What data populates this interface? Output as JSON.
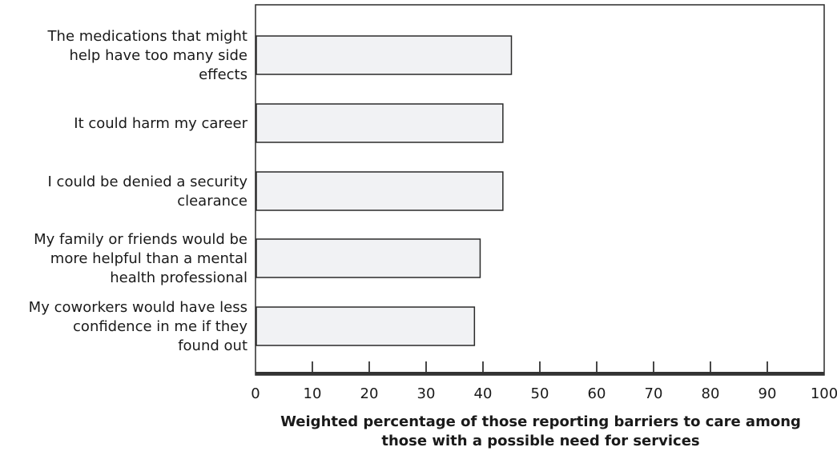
{
  "chart_data": {
    "type": "bar",
    "orientation": "horizontal",
    "categories": [
      "The medications that might help have too many side effects",
      "It could harm my career",
      "I could be denied a security clearance",
      "My family or friends would be more helpful than a mental health professional",
      "My coworkers would have less confidence in me if they found out"
    ],
    "category_lines": [
      [
        "The medications that might",
        "help have too many side",
        "effects"
      ],
      [
        "It could harm my career"
      ],
      [
        "I could be denied a security",
        "clearance"
      ],
      [
        "My family or friends would be",
        "more helpful than a mental",
        "health professional"
      ],
      [
        "My coworkers would have less",
        "confidence in me if they",
        "found out"
      ]
    ],
    "values": [
      45,
      43.5,
      43.5,
      39.5,
      38.5
    ],
    "xlabel_lines": [
      "Weighted percentage of those reporting barriers to care among",
      "those with a possible need for services"
    ],
    "xlim": [
      0,
      100
    ],
    "xticks": [
      0,
      10,
      20,
      30,
      40,
      50,
      60,
      70,
      80,
      90,
      100
    ],
    "grid": false,
    "legend": "none",
    "colors": {
      "bar_fill": "#f1f2f4",
      "bar_stroke": "#2a2a2a",
      "frame": "#2a2a2a",
      "axis": "#333333"
    }
  }
}
